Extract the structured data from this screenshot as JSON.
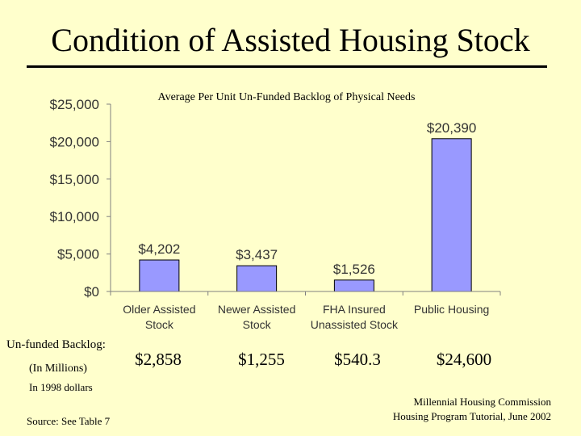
{
  "slide": {
    "title": "Condition of Assisted Housing Stock",
    "backlog_label": "Un-funded Backlog:",
    "millions_label": "(In Millions)",
    "dollars_label": "In 1998 dollars",
    "backlog_values": [
      "$2,858",
      "$1,255",
      "$540.3",
      "$24,600"
    ],
    "source": "Source: See Table 7",
    "credit_line1": "Millennial Housing Commission",
    "credit_line2": "Housing Program Tutorial, June 2002"
  },
  "chart_data": {
    "type": "bar",
    "title": "Average Per Unit Un-Funded Backlog of Physical Needs",
    "categories": [
      [
        "Older Assisted",
        "Stock"
      ],
      [
        "Newer Assisted",
        "Stock"
      ],
      [
        "FHA Insured",
        "Unassisted Stock"
      ],
      [
        "Public Housing",
        ""
      ]
    ],
    "values": [
      4202,
      3437,
      1526,
      20390
    ],
    "data_labels": [
      "$4,202",
      "$3,437",
      "$1,526",
      "$20,390"
    ],
    "ylim": [
      0,
      25000
    ],
    "yticks": [
      0,
      5000,
      10000,
      15000,
      20000,
      25000
    ],
    "ytick_labels": [
      "$0",
      "$5,000",
      "$10,000",
      "$15,000",
      "$20,000",
      "$25,000"
    ],
    "xlabel": "",
    "ylabel": "",
    "grid": false,
    "colors": {
      "bar": "#9999FF",
      "bar_edge": "#000000",
      "axis": "#808080",
      "text": "#333333"
    }
  }
}
